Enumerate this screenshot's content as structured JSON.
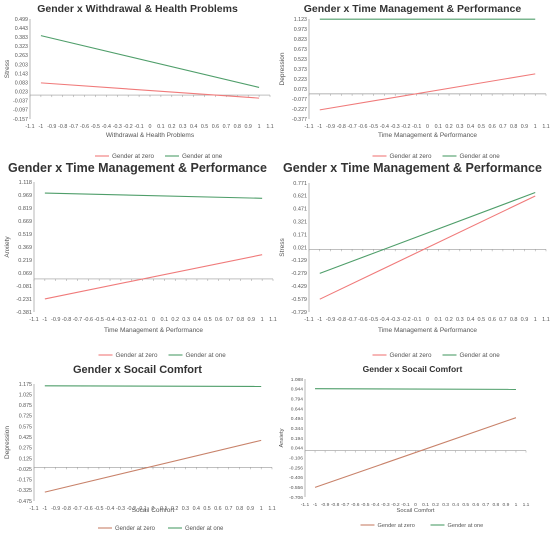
{
  "colors": {
    "zero": "#f07a7a",
    "one": "#4f9e6a",
    "zero_alt": "#c8826a",
    "axis": "#999999"
  },
  "chart_data": [
    {
      "type": "line",
      "title": "Gender x Withdrawal & Health Problems",
      "xlabel": "Withdrawal & Health Problems",
      "ylabel": "Stress",
      "xlim": [
        -1.1,
        1.1
      ],
      "ylim": [
        -0.157,
        0.499
      ],
      "xticks": [
        "-1.1",
        "-1",
        "-0.9",
        "-0.8",
        "-0.7",
        "-0.6",
        "-0.5",
        "-0.4",
        "-0.3",
        "-0.2",
        "-0.1",
        "0",
        "0.1",
        "0.2",
        "0.3",
        "0.4",
        "0.5",
        "0.6",
        "0.7",
        "0.8",
        "0.9",
        "1",
        "1.1"
      ],
      "yticks": [
        "0.499",
        "0.443",
        "0.383",
        "0.323",
        "0.263",
        "0.203",
        "0.143",
        "0.083",
        "0.023",
        "-0.037",
        "-0.097",
        "-0.157"
      ],
      "series": [
        {
          "name": "Gender at zero",
          "x": [
            -1,
            1
          ],
          "y": [
            0.08,
            -0.02
          ]
        },
        {
          "name": "Gender at one",
          "x": [
            -1,
            1
          ],
          "y": [
            0.39,
            0.05
          ]
        }
      ]
    },
    {
      "type": "line",
      "title": "Gender x Time Management & Performance",
      "xlabel": "Time Management & Performance",
      "ylabel": "Depression",
      "xlim": [
        -1.1,
        1.1
      ],
      "ylim": [
        -0.377,
        1.123
      ],
      "xticks": [
        "-1.1",
        "-1",
        "-0.9",
        "-0.8",
        "-0.7",
        "-0.6",
        "-0.5",
        "-0.4",
        "-0.3",
        "-0.2",
        "-0.1",
        "0",
        "0.1",
        "0.2",
        "0.3",
        "0.4",
        "0.5",
        "0.6",
        "0.7",
        "0.8",
        "0.9",
        "1",
        "1.1"
      ],
      "yticks": [
        "1.123",
        "0.973",
        "0.823",
        "0.673",
        "0.523",
        "0.373",
        "0.223",
        "0.073",
        "-0.077",
        "-0.227",
        "-0.377"
      ],
      "series": [
        {
          "name": "Gender at zero",
          "x": [
            -1,
            1
          ],
          "y": [
            -0.24,
            0.3
          ]
        },
        {
          "name": "Gender at one",
          "x": [
            -1,
            1
          ],
          "y": [
            1.12,
            1.12
          ]
        }
      ]
    },
    {
      "type": "line",
      "title": "Gender x Time Management & Performance",
      "xlabel": "Time Management & Performance",
      "ylabel": "Anxiety",
      "xlim": [
        -1.1,
        1.1
      ],
      "ylim": [
        -0.381,
        1.118
      ],
      "xticks": [
        "-1.1",
        "-1",
        "-0.9",
        "-0.8",
        "-0.7",
        "-0.6",
        "-0.5",
        "-0.4",
        "-0.3",
        "-0.2",
        "-0.1",
        "0",
        "0.1",
        "0.2",
        "0.3",
        "0.4",
        "0.5",
        "0.6",
        "0.7",
        "0.8",
        "0.9",
        "1",
        "1.1"
      ],
      "yticks": [
        "1.118",
        "0.969",
        "0.819",
        "0.669",
        "0.519",
        "0.369",
        "0.219",
        "0.069",
        "-0.081",
        "-0.231",
        "-0.381"
      ],
      "series": [
        {
          "name": "Gender at zero",
          "x": [
            -1,
            1
          ],
          "y": [
            -0.23,
            0.28
          ]
        },
        {
          "name": "Gender at one",
          "x": [
            -1,
            1
          ],
          "y": [
            0.99,
            0.93
          ]
        }
      ]
    },
    {
      "type": "line",
      "title": "Gender x Time Management & Performance",
      "xlabel": "Time Management & Performance",
      "ylabel": "Stress",
      "xlim": [
        -1.1,
        1.1
      ],
      "ylim": [
        -0.729,
        0.771
      ],
      "xticks": [
        "-1.1",
        "-1",
        "-0.9",
        "-0.8",
        "-0.7",
        "-0.6",
        "-0.5",
        "-0.4",
        "-0.3",
        "-0.2",
        "-0.1",
        "0",
        "0.1",
        "0.2",
        "0.3",
        "0.4",
        "0.5",
        "0.6",
        "0.7",
        "0.8",
        "0.9",
        "1",
        "1.1"
      ],
      "yticks": [
        "0.771",
        "0.621",
        "0.471",
        "0.321",
        "0.171",
        "0.021",
        "-0.129",
        "-0.279",
        "-0.429",
        "-0.579",
        "-0.729"
      ],
      "series": [
        {
          "name": "Gender at zero",
          "x": [
            -1,
            1
          ],
          "y": [
            -0.58,
            0.62
          ]
        },
        {
          "name": "Gender at one",
          "x": [
            -1,
            1
          ],
          "y": [
            -0.28,
            0.66
          ]
        }
      ]
    },
    {
      "type": "line",
      "title": "Gender x Socail Comfort",
      "xlabel": "Socail Comfort",
      "ylabel": "Depression",
      "xlim": [
        -1.1,
        1.1
      ],
      "ylim": [
        -0.475,
        1.175
      ],
      "xticks": [
        "-1.1",
        "-1",
        "-0.9",
        "-0.8",
        "-0.7",
        "-0.6",
        "-0.5",
        "-0.4",
        "-0.3",
        "-0.2",
        "-0.1",
        "0",
        "0.1",
        "0.2",
        "0.3",
        "0.4",
        "0.5",
        "0.6",
        "0.7",
        "0.8",
        "0.9",
        "1",
        "1.1"
      ],
      "yticks": [
        "1.175",
        "1.025",
        "0.875",
        "0.725",
        "0.575",
        "0.425",
        "0.275",
        "0.125",
        "-0.025",
        "-0.175",
        "-0.325",
        "-0.475"
      ],
      "series": [
        {
          "name": "Gender at zero",
          "x": [
            -1,
            1
          ],
          "y": [
            -0.35,
            0.38
          ]
        },
        {
          "name": "Gender at one",
          "x": [
            -1,
            1
          ],
          "y": [
            1.15,
            1.14
          ]
        }
      ]
    },
    {
      "type": "line",
      "title": "Gender x Socail Comfort",
      "xlabel": "Socail Comfort",
      "ylabel": "Anxiety",
      "xlim": [
        -1.1,
        1.1
      ],
      "ylim": [
        -0.706,
        1.088
      ],
      "xticks": [
        "-1.1",
        "-1",
        "-0.9",
        "-0.8",
        "-0.7",
        "-0.6",
        "-0.5",
        "-0.4",
        "-0.3",
        "-0.2",
        "-0.1",
        "0",
        "0.1",
        "0.2",
        "0.3",
        "0.4",
        "0.5",
        "0.6",
        "0.7",
        "0.8",
        "0.9",
        "1",
        "1.1"
      ],
      "yticks": [
        "1.088",
        "0.944",
        "0.794",
        "0.644",
        "0.494",
        "0.344",
        "0.194",
        "0.044",
        "-0.106",
        "-0.256",
        "-0.406",
        "-0.556",
        "-0.706"
      ],
      "series": [
        {
          "name": "Gender at zero",
          "x": [
            -1,
            1
          ],
          "y": [
            -0.56,
            0.5
          ]
        },
        {
          "name": "Gender at one",
          "x": [
            -1,
            1
          ],
          "y": [
            0.94,
            0.93
          ]
        }
      ]
    }
  ]
}
